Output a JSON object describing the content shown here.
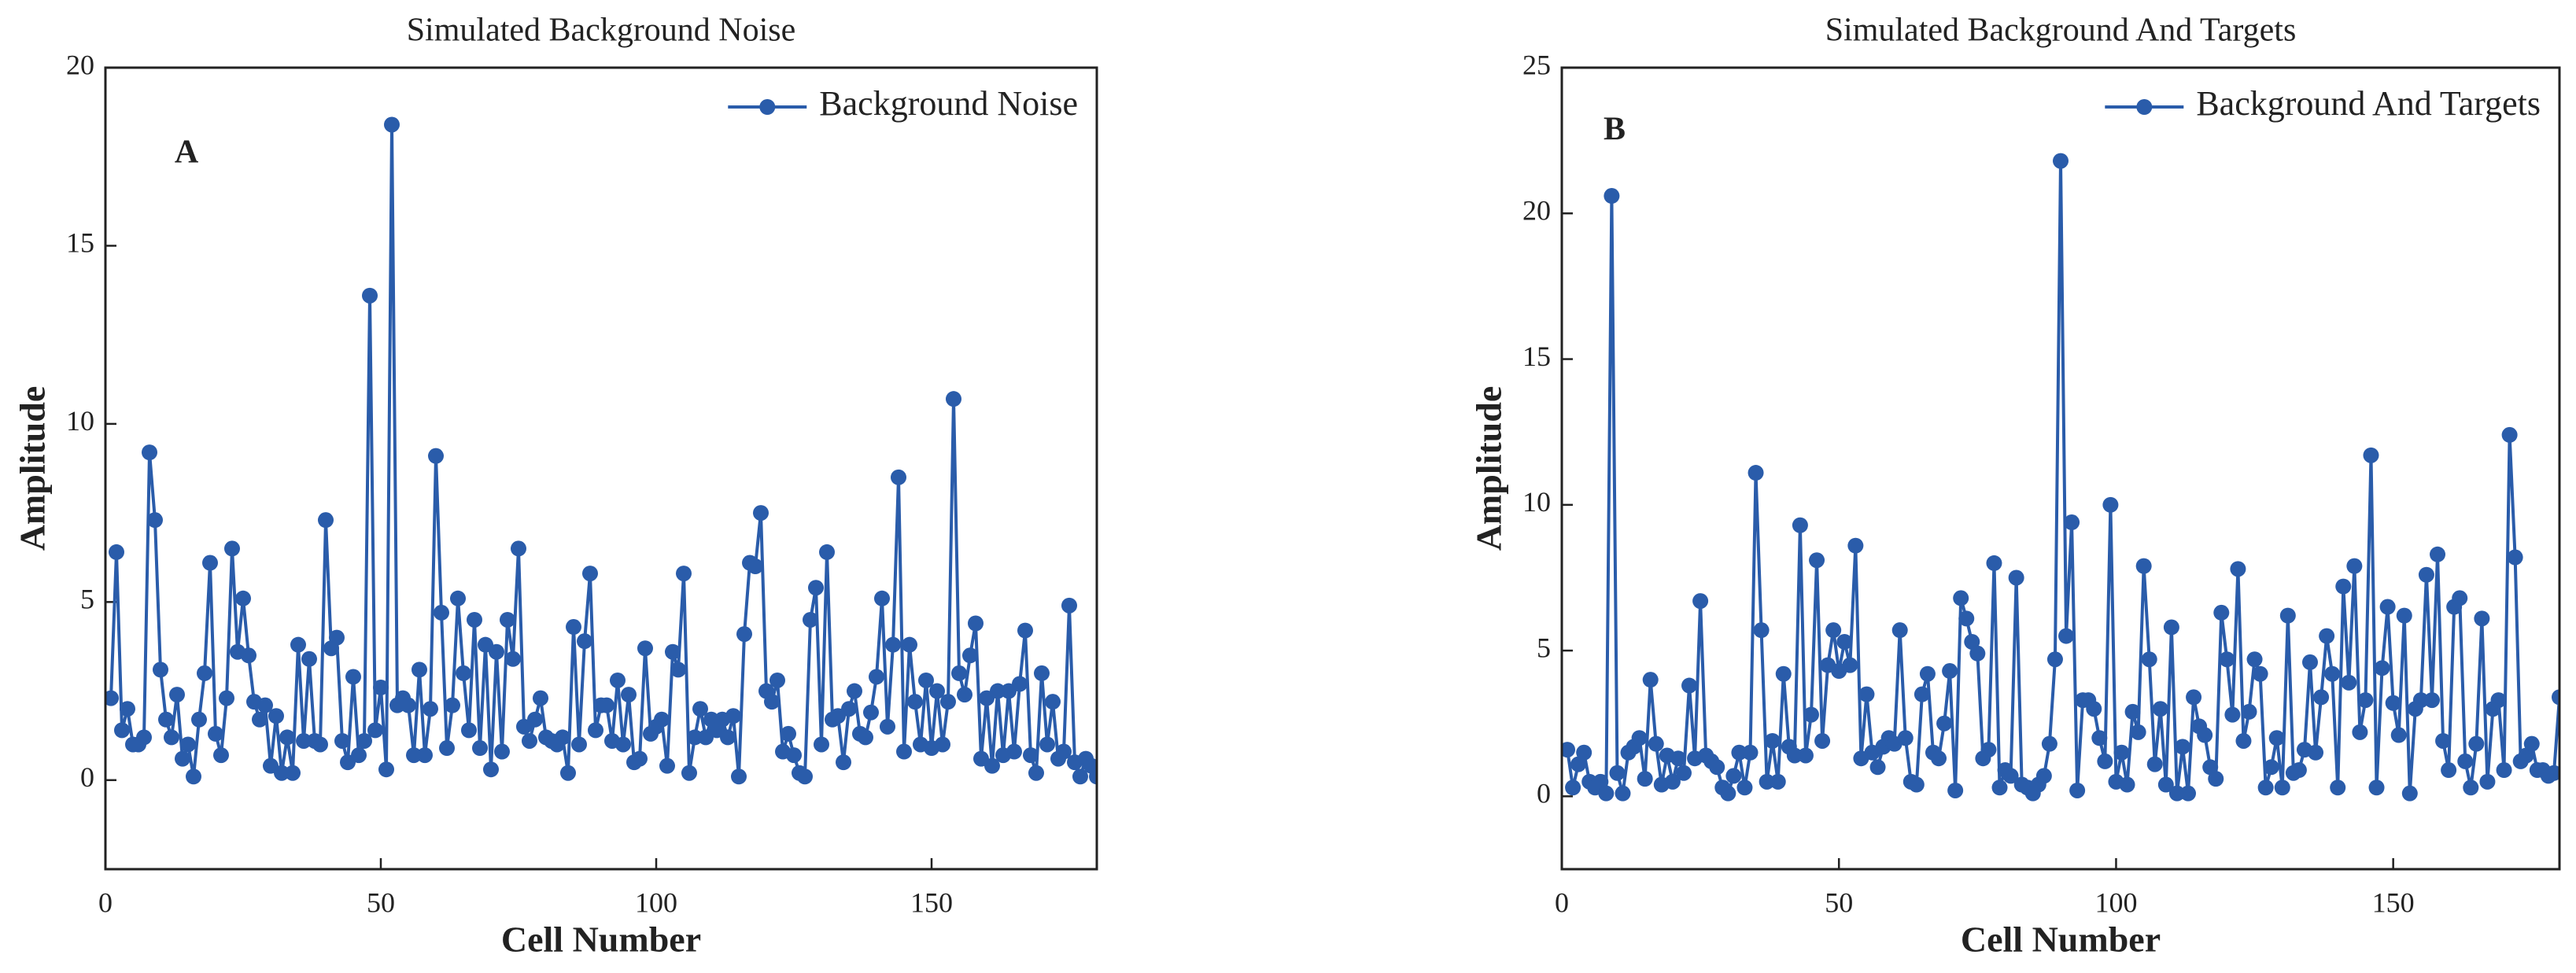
{
  "chart_data": [
    {
      "type": "line",
      "title": "Simulated Background Noise",
      "xlabel": "Cell Number",
      "ylabel": "Amplitude",
      "annotation": "A",
      "xlim": [
        0,
        180
      ],
      "xticks": [
        0,
        50,
        100,
        150
      ],
      "ylim": [
        -2.5,
        20
      ],
      "yticks": [
        0,
        5,
        10,
        15,
        20
      ],
      "legend": "upper right",
      "x": [
        1,
        2,
        3,
        4,
        5,
        6,
        7,
        8,
        9,
        10,
        11,
        12,
        13,
        14,
        15,
        16,
        17,
        18,
        19,
        20,
        21,
        22,
        23,
        24,
        25,
        26,
        27,
        28,
        29,
        30,
        31,
        32,
        33,
        34,
        35,
        36,
        37,
        38,
        39,
        40,
        41,
        42,
        43,
        44,
        45,
        46,
        47,
        48,
        49,
        50,
        51,
        52,
        53,
        54,
        55,
        56,
        57,
        58,
        59,
        60,
        61,
        62,
        63,
        64,
        65,
        66,
        67,
        68,
        69,
        70,
        71,
        72,
        73,
        74,
        75,
        76,
        77,
        78,
        79,
        80,
        81,
        82,
        83,
        84,
        85,
        86,
        87,
        88,
        89,
        90,
        91,
        92,
        93,
        94,
        95,
        96,
        97,
        98,
        99,
        100,
        101,
        102,
        103,
        104,
        105,
        106,
        107,
        108,
        109,
        110,
        111,
        112,
        113,
        114,
        115,
        116,
        117,
        118,
        119,
        120,
        121,
        122,
        123,
        124,
        125,
        126,
        127,
        128,
        129,
        130,
        131,
        132,
        133,
        134,
        135,
        136,
        137,
        138,
        139,
        140,
        141,
        142,
        143,
        144,
        145,
        146,
        147,
        148,
        149,
        150,
        151,
        152,
        153,
        154,
        155,
        156,
        157,
        158,
        159,
        160,
        161,
        162,
        163,
        164,
        165,
        166,
        167,
        168,
        169,
        170,
        171,
        172,
        173,
        174,
        175,
        176,
        177,
        178,
        179,
        180
      ],
      "series": [
        {
          "name": "Background Noise",
          "color": "#2a5caa",
          "values": [
            2.3,
            6.4,
            1.4,
            2.0,
            1.0,
            1.0,
            1.2,
            9.2,
            7.3,
            3.1,
            1.7,
            1.2,
            2.4,
            0.6,
            1.0,
            0.1,
            1.7,
            3.0,
            6.1,
            1.3,
            0.7,
            2.3,
            6.5,
            3.6,
            5.1,
            3.5,
            2.2,
            1.7,
            2.1,
            0.4,
            1.8,
            0.2,
            1.2,
            0.2,
            3.8,
            1.1,
            3.4,
            1.1,
            1.0,
            7.3,
            3.7,
            4.0,
            1.1,
            0.5,
            2.9,
            0.7,
            1.1,
            13.6,
            1.4,
            2.6,
            0.3,
            18.4,
            2.1,
            2.3,
            2.1,
            0.7,
            3.1,
            0.7,
            2.0,
            9.1,
            4.7,
            0.9,
            2.1,
            5.1,
            3.0,
            1.4,
            4.5,
            0.9,
            3.8,
            0.3,
            3.6,
            0.8,
            4.5,
            3.4,
            6.5,
            1.5,
            1.1,
            1.7,
            2.3,
            1.2,
            1.1,
            1.0,
            1.2,
            0.2,
            4.3,
            1.0,
            3.9,
            5.8,
            1.4,
            2.1,
            2.1,
            1.1,
            2.8,
            1.0,
            2.4,
            0.5,
            0.6,
            3.7,
            1.3,
            1.5,
            1.7,
            0.4,
            3.6,
            3.1,
            5.8,
            0.2,
            1.2,
            2.0,
            1.2,
            1.7,
            1.4,
            1.7,
            1.2,
            1.8,
            0.1,
            4.1,
            6.1,
            6.0,
            7.5,
            2.5,
            2.2,
            2.8,
            0.8,
            1.3,
            0.7,
            0.2,
            0.1,
            4.5,
            5.4,
            1.0,
            6.4,
            1.7,
            1.8,
            0.5,
            2.0,
            2.5,
            1.3,
            1.2,
            1.9,
            2.9,
            5.1,
            1.5,
            3.8,
            8.5,
            0.8,
            3.8,
            2.2,
            1.0,
            2.8,
            0.9,
            2.5,
            1.0,
            2.2,
            10.7,
            3.0,
            2.4,
            3.5,
            4.4,
            0.6,
            2.3,
            0.4,
            2.5,
            0.7,
            2.5,
            0.8,
            2.7,
            4.2,
            0.7,
            0.2,
            3.0,
            1.0,
            2.2,
            0.6,
            0.8,
            4.9,
            0.5,
            0.1,
            0.6,
            0.4,
            0.1
          ]
        }
      ]
    },
    {
      "type": "line",
      "title": "Simulated Background And Targets",
      "xlabel": "Cell Number",
      "ylabel": "Amplitude",
      "annotation": "B",
      "xlim": [
        0,
        180
      ],
      "xticks": [
        0,
        50,
        100,
        150
      ],
      "ylim": [
        -2.5,
        25
      ],
      "yticks": [
        0,
        5,
        10,
        15,
        20,
        25
      ],
      "legend": "upper right",
      "x": [
        1,
        2,
        3,
        4,
        5,
        6,
        7,
        8,
        9,
        10,
        11,
        12,
        13,
        14,
        15,
        16,
        17,
        18,
        19,
        20,
        21,
        22,
        23,
        24,
        25,
        26,
        27,
        28,
        29,
        30,
        31,
        32,
        33,
        34,
        35,
        36,
        37,
        38,
        39,
        40,
        41,
        42,
        43,
        44,
        45,
        46,
        47,
        48,
        49,
        50,
        51,
        52,
        53,
        54,
        55,
        56,
        57,
        58,
        59,
        60,
        61,
        62,
        63,
        64,
        65,
        66,
        67,
        68,
        69,
        70,
        71,
        72,
        73,
        74,
        75,
        76,
        77,
        78,
        79,
        80,
        81,
        82,
        83,
        84,
        85,
        86,
        87,
        88,
        89,
        90,
        91,
        92,
        93,
        94,
        95,
        96,
        97,
        98,
        99,
        100,
        101,
        102,
        103,
        104,
        105,
        106,
        107,
        108,
        109,
        110,
        111,
        112,
        113,
        114,
        115,
        116,
        117,
        118,
        119,
        120,
        121,
        122,
        123,
        124,
        125,
        126,
        127,
        128,
        129,
        130,
        131,
        132,
        133,
        134,
        135,
        136,
        137,
        138,
        139,
        140,
        141,
        142,
        143,
        144,
        145,
        146,
        147,
        148,
        149,
        150,
        151,
        152,
        153,
        154,
        155,
        156,
        157,
        158,
        159,
        160,
        161,
        162,
        163,
        164,
        165,
        166,
        167,
        168,
        169,
        170,
        171,
        172,
        173,
        174,
        175,
        176,
        177,
        178,
        179,
        180
      ],
      "series": [
        {
          "name": "Background And Targets",
          "color": "#2a5caa",
          "values": [
            1.6,
            0.3,
            1.1,
            1.5,
            0.5,
            0.3,
            0.5,
            0.1,
            20.6,
            0.8,
            0.1,
            1.5,
            1.7,
            2.0,
            0.6,
            4.0,
            1.8,
            0.4,
            1.4,
            0.5,
            1.3,
            0.8,
            3.8,
            1.3,
            6.7,
            1.4,
            1.2,
            1.0,
            0.3,
            0.1,
            0.7,
            1.5,
            0.3,
            1.5,
            11.1,
            5.7,
            0.5,
            1.9,
            0.5,
            4.2,
            1.7,
            1.4,
            9.3,
            1.4,
            2.8,
            8.1,
            1.9,
            4.5,
            5.7,
            4.3,
            5.3,
            4.5,
            8.6,
            1.3,
            3.5,
            1.5,
            1.0,
            1.7,
            2.0,
            1.8,
            5.7,
            2.0,
            0.5,
            0.4,
            3.5,
            4.2,
            1.5,
            1.3,
            2.5,
            4.3,
            0.2,
            6.8,
            6.1,
            5.3,
            4.9,
            1.3,
            1.6,
            8.0,
            0.3,
            0.9,
            0.7,
            7.5,
            0.4,
            0.3,
            0.1,
            0.4,
            0.7,
            1.8,
            4.7,
            21.8,
            5.5,
            9.4,
            0.2,
            3.3,
            3.3,
            3.0,
            2.0,
            1.2,
            10.0,
            0.5,
            1.5,
            0.4,
            2.9,
            2.2,
            7.9,
            4.7,
            1.1,
            3.0,
            0.4,
            5.8,
            0.1,
            1.7,
            0.1,
            3.4,
            2.4,
            2.1,
            1.0,
            0.6,
            6.3,
            4.7,
            2.8,
            7.8,
            1.9,
            2.9,
            4.7,
            4.2,
            0.3,
            1.0,
            2.0,
            0.3,
            6.2,
            0.8,
            0.9,
            1.6,
            4.6,
            1.5,
            3.4,
            5.5,
            4.2,
            0.3,
            7.2,
            3.9,
            7.9,
            2.2,
            3.3,
            11.7,
            0.3,
            4.4,
            6.5,
            3.2,
            2.1,
            6.2,
            0.1,
            3.0,
            3.3,
            7.6,
            3.3,
            8.3,
            1.9,
            0.9,
            6.5,
            6.8,
            1.2,
            0.3,
            1.8,
            6.1,
            0.5,
            3.0,
            3.3,
            0.9,
            12.4,
            8.2,
            1.2,
            1.4,
            1.8,
            0.9,
            0.9,
            0.7,
            0.8,
            3.4
          ]
        }
      ]
    }
  ]
}
